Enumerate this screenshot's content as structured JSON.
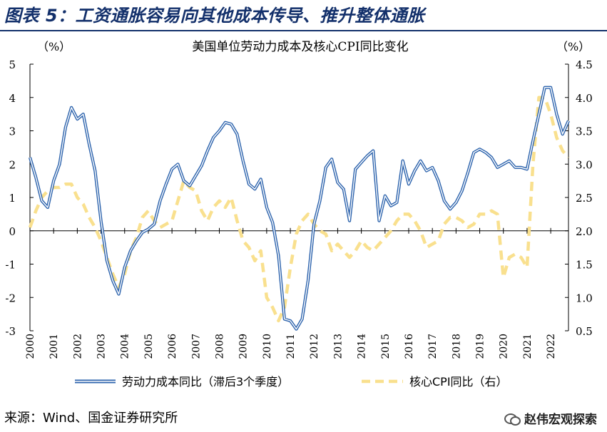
{
  "figure_title": "图表 5：工资通胀容易向其他成本传导、推升整体通胀",
  "source": "来源：Wind、国金证券研究所",
  "brand": "赵伟宏观探索",
  "brand_icon": "wechat-icon",
  "chart_data": {
    "type": "line",
    "title": "美国单位劳动力成本及核心CPI同比变化",
    "y_left_unit": "（%）",
    "y_right_unit": "（%）",
    "y_left_range": [
      -3,
      5
    ],
    "y_right_range": [
      0.5,
      4.5
    ],
    "y_left_ticks": [
      "5",
      "4",
      "3",
      "2",
      "1",
      "0",
      "-1",
      "-2",
      "-3"
    ],
    "y_right_ticks": [
      "4.5",
      "4.0",
      "3.5",
      "3.0",
      "2.5",
      "2.0",
      "1.5",
      "1.0",
      "0.5"
    ],
    "x_range": [
      2000.0,
      2022.75
    ],
    "x_ticks": [
      "2000",
      "2001",
      "2002",
      "2003",
      "2004",
      "2005",
      "2006",
      "2007",
      "2008",
      "2009",
      "2010",
      "2011",
      "2012",
      "2013",
      "2014",
      "2015",
      "2016",
      "2017",
      "2018",
      "2019",
      "2020",
      "2021",
      "2022"
    ],
    "grid": false,
    "legend_position": "bottom",
    "colors": {
      "series1": "#2e64ad",
      "series2": "#f9e08e",
      "axis": "#000000",
      "title": "#13306b"
    },
    "series": [
      {
        "name": "劳动力成本同比（滞后3个季度）",
        "axis": "left",
        "style": "double-line",
        "x": [
          2000.0,
          2000.25,
          2000.5,
          2000.75,
          2001.0,
          2001.25,
          2001.5,
          2001.75,
          2002.0,
          2002.25,
          2002.5,
          2002.75,
          2003.0,
          2003.25,
          2003.5,
          2003.75,
          2004.0,
          2004.25,
          2004.5,
          2004.75,
          2005.0,
          2005.25,
          2005.5,
          2005.75,
          2006.0,
          2006.25,
          2006.5,
          2006.75,
          2007.0,
          2007.25,
          2007.5,
          2007.75,
          2008.0,
          2008.25,
          2008.5,
          2008.75,
          2009.0,
          2009.25,
          2009.5,
          2009.75,
          2010.0,
          2010.25,
          2010.5,
          2010.75,
          2011.0,
          2011.25,
          2011.5,
          2011.75,
          2012.0,
          2012.25,
          2012.5,
          2012.75,
          2013.0,
          2013.25,
          2013.5,
          2013.75,
          2014.0,
          2014.25,
          2014.5,
          2014.75,
          2015.0,
          2015.25,
          2015.5,
          2015.75,
          2016.0,
          2016.25,
          2016.5,
          2016.75,
          2017.0,
          2017.25,
          2017.5,
          2017.75,
          2018.0,
          2018.25,
          2018.5,
          2018.75,
          2019.0,
          2019.25,
          2019.5,
          2019.75,
          2020.0,
          2020.25,
          2020.5,
          2020.75,
          2021.0,
          2021.25,
          2021.5,
          2021.75,
          2022.0,
          2022.25,
          2022.5,
          2022.75
        ],
        "values": [
          2.2,
          1.6,
          0.9,
          0.7,
          1.5,
          2.0,
          3.1,
          3.7,
          3.35,
          3.5,
          2.6,
          1.8,
          0.3,
          -0.9,
          -1.5,
          -1.9,
          -1.1,
          -0.6,
          -0.3,
          -0.05,
          0.05,
          0.2,
          0.9,
          1.4,
          1.85,
          2.0,
          1.5,
          1.35,
          1.65,
          1.95,
          2.4,
          2.8,
          3.0,
          3.25,
          3.2,
          2.9,
          2.1,
          1.4,
          1.25,
          1.55,
          0.7,
          0.25,
          -0.75,
          -2.65,
          -2.7,
          -2.95,
          -2.65,
          -1.5,
          0.2,
          0.9,
          1.9,
          2.15,
          1.45,
          1.25,
          0.3,
          1.85,
          2.05,
          2.25,
          2.4,
          0.3,
          1.05,
          0.75,
          0.85,
          2.1,
          1.4,
          1.8,
          2.1,
          1.8,
          1.9,
          1.5,
          0.9,
          0.65,
          0.85,
          1.2,
          1.75,
          2.35,
          2.45,
          2.35,
          2.2,
          1.9,
          2.0,
          2.1,
          1.9,
          1.9,
          1.85,
          2.7,
          3.5,
          4.3,
          4.3,
          3.5,
          2.9,
          3.3
        ]
      },
      {
        "name": "核心CPI同比（右）",
        "axis": "right",
        "style": "dashed",
        "x": [
          2000.0,
          2000.25,
          2000.5,
          2000.75,
          2001.0,
          2001.25,
          2001.5,
          2001.75,
          2002.0,
          2002.25,
          2002.5,
          2002.75,
          2003.0,
          2003.25,
          2003.5,
          2003.75,
          2004.0,
          2004.25,
          2004.5,
          2004.75,
          2005.0,
          2005.25,
          2005.5,
          2005.75,
          2006.0,
          2006.25,
          2006.5,
          2006.75,
          2007.0,
          2007.25,
          2007.5,
          2007.75,
          2008.0,
          2008.25,
          2008.5,
          2008.75,
          2009.0,
          2009.25,
          2009.5,
          2009.75,
          2010.0,
          2010.25,
          2010.5,
          2010.75,
          2011.0,
          2011.25,
          2011.5,
          2011.75,
          2012.0,
          2012.25,
          2012.5,
          2012.75,
          2013.0,
          2013.25,
          2013.5,
          2013.75,
          2014.0,
          2014.25,
          2014.5,
          2014.75,
          2015.0,
          2015.25,
          2015.5,
          2015.75,
          2016.0,
          2016.25,
          2016.5,
          2016.75,
          2017.0,
          2017.25,
          2017.5,
          2017.75,
          2018.0,
          2018.25,
          2018.5,
          2018.75,
          2019.0,
          2019.25,
          2019.5,
          2019.75,
          2020.0,
          2020.25,
          2020.5,
          2020.75,
          2021.0,
          2021.25,
          2021.5,
          2021.75,
          2022.0,
          2022.25,
          2022.5,
          2022.75
        ],
        "values": [
          2.05,
          2.3,
          2.5,
          2.6,
          2.65,
          2.65,
          2.7,
          2.7,
          2.5,
          2.4,
          2.2,
          2.05,
          1.85,
          1.6,
          1.35,
          1.15,
          1.35,
          1.7,
          1.9,
          2.2,
          2.3,
          2.15,
          2.05,
          2.1,
          2.15,
          2.45,
          2.75,
          2.65,
          2.6,
          2.3,
          2.15,
          2.35,
          2.45,
          2.35,
          2.5,
          2.15,
          1.85,
          1.75,
          1.55,
          1.7,
          1.0,
          0.85,
          0.65,
          0.85,
          1.45,
          1.95,
          2.15,
          2.25,
          2.1,
          2.0,
          1.95,
          1.7,
          1.8,
          1.7,
          1.6,
          1.7,
          1.85,
          1.75,
          1.7,
          1.8,
          1.9,
          2.0,
          2.15,
          2.25,
          2.25,
          2.15,
          2.0,
          1.75,
          1.8,
          1.85,
          2.1,
          2.2,
          2.2,
          2.15,
          2.05,
          2.1,
          2.25,
          2.25,
          2.3,
          2.25,
          1.3,
          1.6,
          1.65,
          1.6,
          1.45,
          3.0,
          4.0,
          4.0,
          3.75,
          3.4,
          3.2,
          3.1
        ]
      }
    ]
  }
}
